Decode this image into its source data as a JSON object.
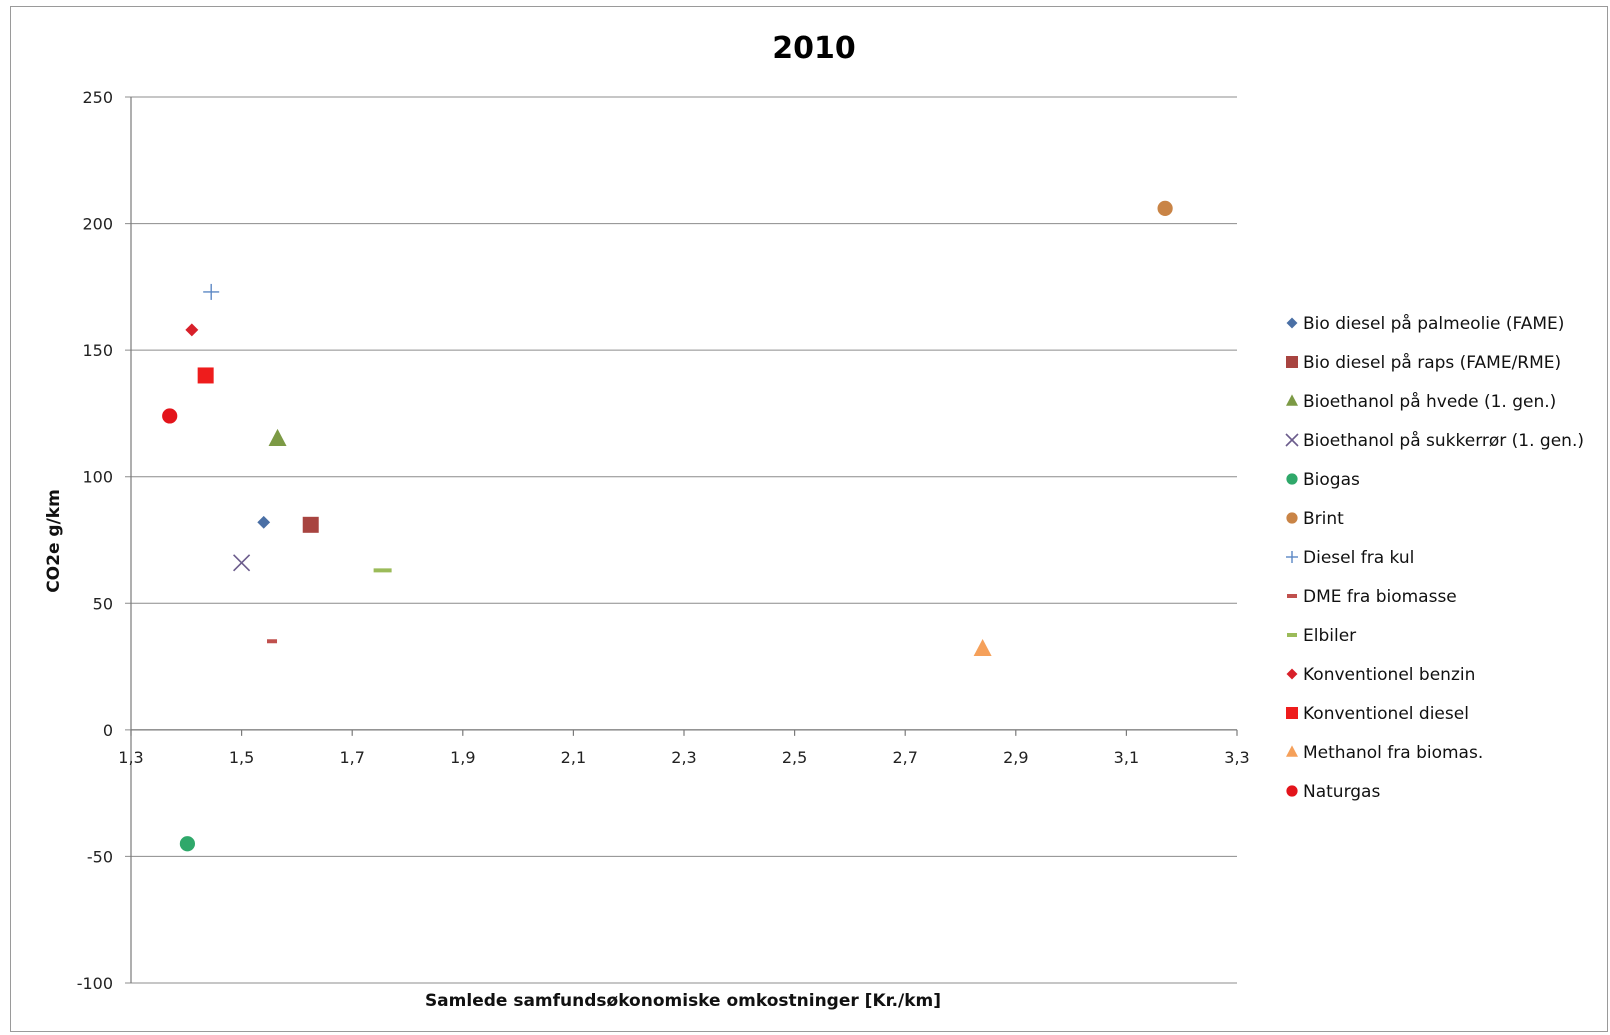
{
  "chart_data": {
    "type": "scatter",
    "title": "2010",
    "xlabel": "Samlede samfundsøkonomiske omkostninger [Kr./km]",
    "ylabel": "CO2e g/km",
    "xlim": [
      1.3,
      3.3
    ],
    "ylim": [
      -100,
      250
    ],
    "xticks": [
      "1,3",
      "1,5",
      "1,7",
      "1,9",
      "2,1",
      "2,3",
      "2,5",
      "2,7",
      "2,9",
      "3,1",
      "3,3"
    ],
    "xtick_values": [
      1.3,
      1.5,
      1.7,
      1.9,
      2.1,
      2.3,
      2.5,
      2.7,
      2.9,
      3.1,
      3.3
    ],
    "yticks": [
      "250",
      "200",
      "150",
      "100",
      "50",
      "0",
      "-50",
      "-100"
    ],
    "ytick_values": [
      250,
      200,
      150,
      100,
      50,
      0,
      -50,
      -100
    ],
    "grid": "horizontal",
    "legend_position": "right",
    "series": [
      {
        "name": "Bio diesel på palmeolie (FAME)",
        "marker": "diamond",
        "color": "#4a6fa5",
        "x": [
          1.54
        ],
        "y": [
          82
        ]
      },
      {
        "name": "Bio diesel på raps (FAME/RME)",
        "marker": "square",
        "color": "#a84440",
        "x": [
          1.625
        ],
        "y": [
          81
        ]
      },
      {
        "name": "Bioethanol på hvede (1. gen.)",
        "marker": "triangle",
        "color": "#7c9a45",
        "x": [
          1.565
        ],
        "y": [
          115
        ]
      },
      {
        "name": "Bioethanol på sukkerrør (1. gen.)",
        "marker": "x",
        "color": "#6b5c8c",
        "x": [
          1.5
        ],
        "y": [
          66
        ]
      },
      {
        "name": "Biogas",
        "marker": "circle",
        "color": "#2fa86a",
        "x": [
          1.402
        ],
        "y": [
          -45
        ]
      },
      {
        "name": "Brint",
        "marker": "circle",
        "color": "#c98446",
        "x": [
          3.17
        ],
        "y": [
          206
        ]
      },
      {
        "name": "Diesel fra kul",
        "marker": "plus",
        "color": "#5b87c4",
        "x": [
          1.445
        ],
        "y": [
          173
        ]
      },
      {
        "name": "DME fra biomasse",
        "marker": "dash",
        "color": "#c0504d",
        "x": [
          1.555
        ],
        "y": [
          35
        ]
      },
      {
        "name": "Elbiler",
        "marker": "dash",
        "color": "#9bbb59",
        "x": [
          1.755
        ],
        "y": [
          63
        ]
      },
      {
        "name": "Konventionel benzin",
        "marker": "diamond",
        "color": "#d8202a",
        "x": [
          1.41
        ],
        "y": [
          158
        ]
      },
      {
        "name": "Konventionel diesel",
        "marker": "square",
        "color": "#ee1c1c",
        "x": [
          1.435
        ],
        "y": [
          140
        ]
      },
      {
        "name": "Methanol fra biomas.",
        "marker": "triangle",
        "color": "#f5a05a",
        "x": [
          2.84
        ],
        "y": [
          32
        ]
      },
      {
        "name": "Naturgas",
        "marker": "circle",
        "color": "#e3141b",
        "x": [
          1.37
        ],
        "y": [
          124
        ]
      }
    ]
  }
}
